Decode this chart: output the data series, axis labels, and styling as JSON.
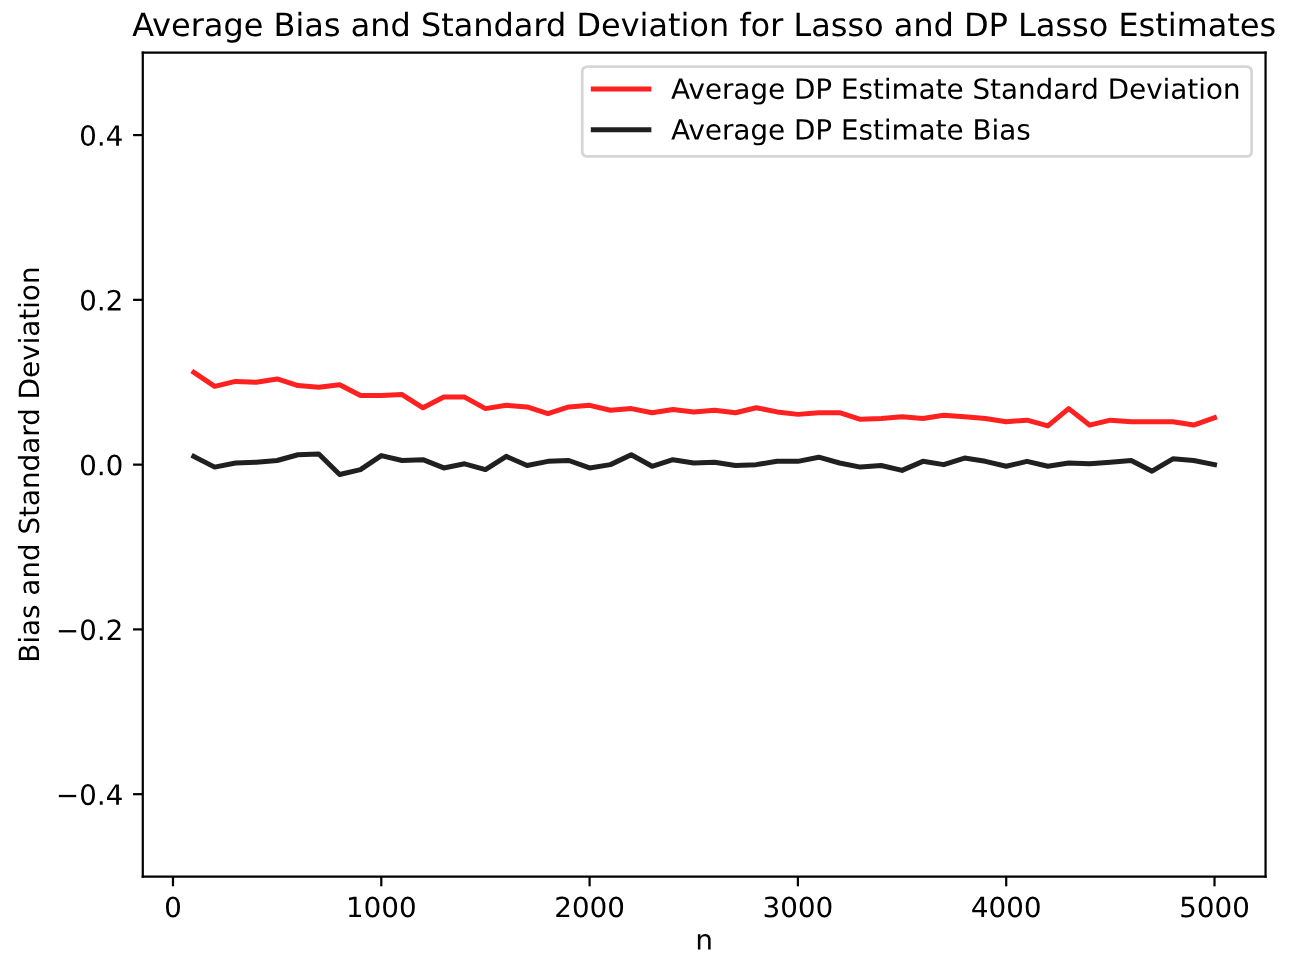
{
  "chart_data": {
    "type": "line",
    "title": "Average Bias and Standard Deviation for Lasso and DP Lasso Estimates",
    "xlabel": "n",
    "ylabel": "Bias and Standard Deviation",
    "x": [
      100,
      200,
      300,
      400,
      500,
      600,
      700,
      800,
      900,
      1000,
      1100,
      1200,
      1300,
      1400,
      1500,
      1600,
      1700,
      1800,
      1900,
      2000,
      2100,
      2200,
      2300,
      2400,
      2500,
      2600,
      2700,
      2800,
      2900,
      3000,
      3100,
      3200,
      3300,
      3400,
      3500,
      3600,
      3700,
      3800,
      3900,
      4000,
      4100,
      4200,
      4300,
      4400,
      4500,
      4600,
      4700,
      4800,
      4900,
      5000
    ],
    "series": [
      {
        "name": "Average DP Estimate Standard Deviation",
        "color": "#ff2020",
        "values": [
          0.112,
          0.095,
          0.101,
          0.1,
          0.104,
          0.096,
          0.094,
          0.097,
          0.084,
          0.084,
          0.085,
          0.069,
          0.082,
          0.082,
          0.068,
          0.072,
          0.07,
          0.062,
          0.07,
          0.072,
          0.066,
          0.068,
          0.063,
          0.067,
          0.064,
          0.066,
          0.063,
          0.069,
          0.064,
          0.061,
          0.063,
          0.063,
          0.055,
          0.056,
          0.058,
          0.056,
          0.06,
          0.058,
          0.056,
          0.052,
          0.054,
          0.047,
          0.068,
          0.048,
          0.054,
          0.052,
          0.052,
          0.052,
          0.048,
          0.057
        ]
      },
      {
        "name": "Average DP Estimate Bias",
        "color": "#202020",
        "values": [
          0.01,
          -0.003,
          0.002,
          0.003,
          0.005,
          0.012,
          0.013,
          -0.012,
          -0.006,
          0.011,
          0.005,
          0.006,
          -0.004,
          0.001,
          -0.006,
          0.01,
          -0.001,
          0.004,
          0.005,
          -0.004,
          0.0,
          0.012,
          -0.002,
          0.006,
          0.002,
          0.003,
          -0.001,
          0.0,
          0.004,
          0.004,
          0.009,
          0.002,
          -0.003,
          -0.001,
          -0.007,
          0.004,
          0.0,
          0.008,
          0.004,
          -0.002,
          0.004,
          -0.002,
          0.002,
          0.001,
          0.003,
          0.005,
          -0.008,
          0.007,
          0.005,
          0.0
        ]
      }
    ],
    "xlim": [
      -145,
      5245
    ],
    "ylim": [
      -0.5,
      0.5
    ],
    "xticks": [
      0,
      1000,
      2000,
      3000,
      4000,
      5000
    ],
    "yticks": [
      {
        "value": -0.4,
        "label": "−0.4"
      },
      {
        "value": -0.2,
        "label": "−0.2"
      },
      {
        "value": 0.0,
        "label": "0.0"
      },
      {
        "value": 0.2,
        "label": "0.2"
      },
      {
        "value": 0.4,
        "label": "0.4"
      }
    ],
    "legend": "top right",
    "grid": false,
    "marker": "none",
    "line_style": "solid"
  }
}
